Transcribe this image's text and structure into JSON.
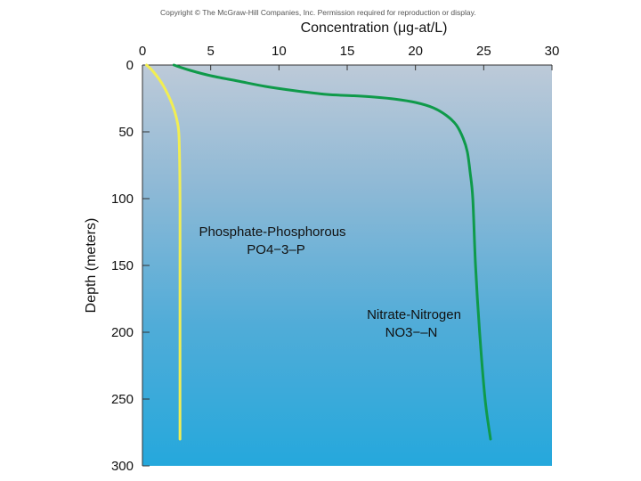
{
  "copyright": "Copyright © The McGraw-Hill Companies, Inc. Permission required for reproduction or display.",
  "chart_data": {
    "type": "line",
    "xlabel": "Concentration (μg-at/L)",
    "ylabel": "Depth (meters)",
    "xlim": [
      0,
      30
    ],
    "ylim": [
      0,
      300
    ],
    "y_inverted": true,
    "x_axis_position": "top",
    "x_ticks": [
      "0",
      "5",
      "10",
      "15",
      "20",
      "25",
      "30"
    ],
    "y_ticks": [
      "0",
      "50",
      "100",
      "150",
      "200",
      "250",
      "300"
    ],
    "grid": false,
    "series": [
      {
        "name": "Phosphate-Phosphorous",
        "formula": "PO4−3–P",
        "color": "#f2ee52",
        "points": [
          [
            0.3,
            0
          ],
          [
            0.8,
            5
          ],
          [
            1.5,
            15
          ],
          [
            2.2,
            30
          ],
          [
            2.6,
            45
          ],
          [
            2.7,
            60
          ],
          [
            2.75,
            100
          ],
          [
            2.75,
            150
          ],
          [
            2.75,
            200
          ],
          [
            2.75,
            250
          ],
          [
            2.75,
            280
          ]
        ]
      },
      {
        "name": "Nitrate-Nitrogen",
        "formula": "NO3−–N",
        "color": "#0f9a4a",
        "points": [
          [
            2.3,
            0
          ],
          [
            3.5,
            4
          ],
          [
            5,
            8
          ],
          [
            7,
            12
          ],
          [
            9,
            16
          ],
          [
            11,
            19
          ],
          [
            13.5,
            22
          ],
          [
            15.5,
            23
          ],
          [
            17,
            24
          ],
          [
            18.5,
            25.5
          ],
          [
            20,
            28
          ],
          [
            21.3,
            32
          ],
          [
            22.3,
            38
          ],
          [
            23,
            45
          ],
          [
            23.5,
            55
          ],
          [
            23.8,
            65
          ],
          [
            24,
            80
          ],
          [
            24.2,
            100
          ],
          [
            24.4,
            150
          ],
          [
            24.7,
            200
          ],
          [
            25.1,
            250
          ],
          [
            25.5,
            280
          ]
        ]
      }
    ]
  }
}
